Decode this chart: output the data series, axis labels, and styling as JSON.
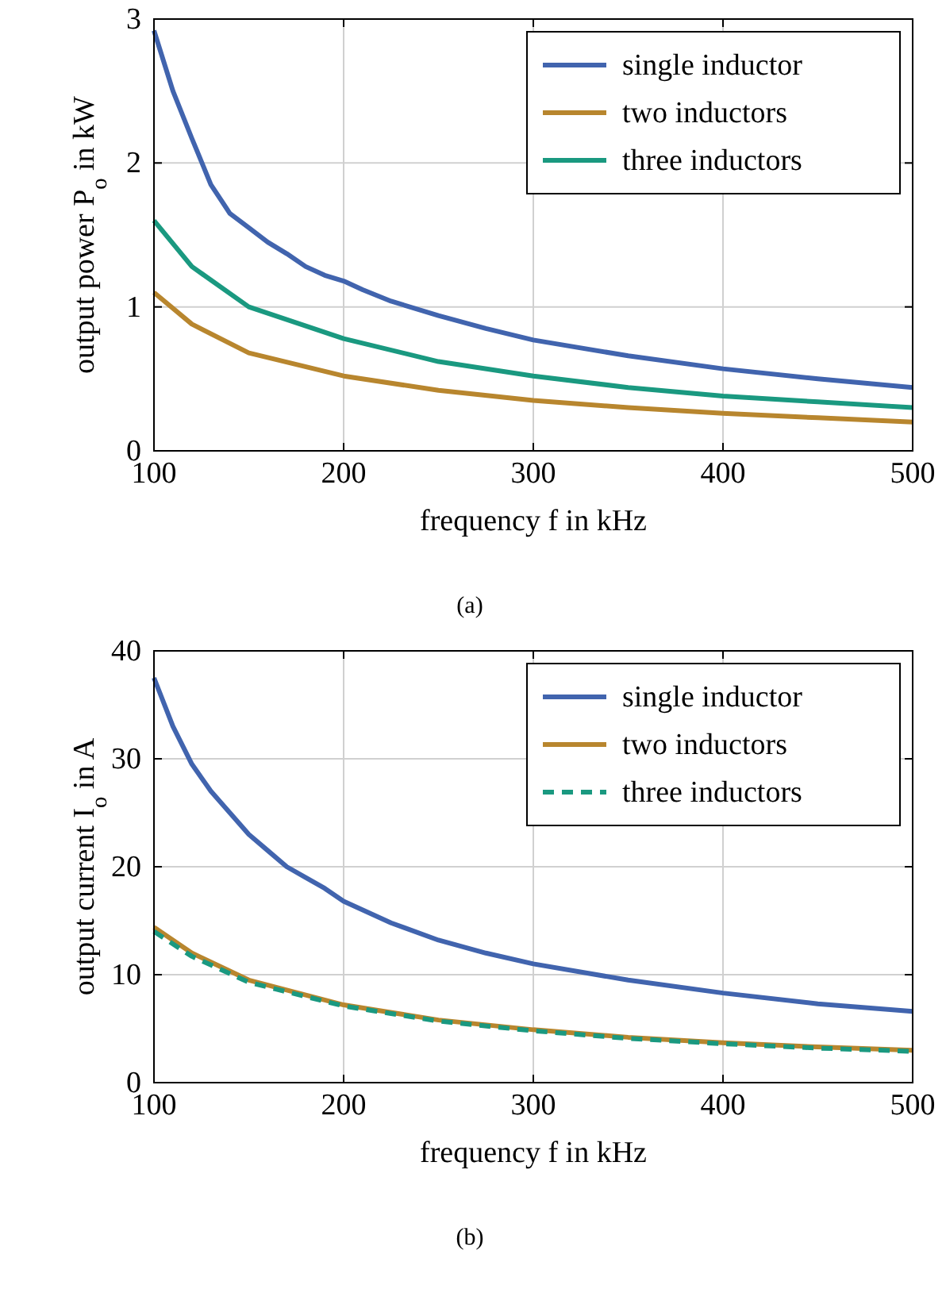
{
  "chart_data": [
    {
      "type": "line",
      "xlabel": "frequency f in kHz",
      "ylabel": "output power P$_{o}$ in kW",
      "annotations": [
        "(a)"
      ],
      "xlim": [
        100,
        500
      ],
      "ylim": [
        0,
        3
      ],
      "xticks": [
        100,
        200,
        300,
        400,
        500
      ],
      "yticks": [
        0,
        1,
        2,
        3
      ],
      "grid": true,
      "legend": "top right",
      "marker": "none",
      "series": [
        {
          "name": "single inductor",
          "color": "#4164ae",
          "x": [
            100,
            110,
            120,
            130,
            140,
            150,
            160,
            170,
            180,
            190,
            200,
            210,
            225,
            250,
            275,
            300,
            350,
            400,
            450,
            500
          ],
          "values": [
            2.92,
            2.5,
            2.17,
            1.85,
            1.65,
            1.55,
            1.45,
            1.37,
            1.28,
            1.22,
            1.18,
            1.12,
            1.04,
            0.94,
            0.85,
            0.77,
            0.66,
            0.57,
            0.5,
            0.44
          ]
        },
        {
          "name": "two inductors",
          "color": "#b8862e",
          "x": [
            100,
            120,
            150,
            200,
            250,
            300,
            350,
            400,
            450,
            500
          ],
          "values": [
            1.1,
            0.88,
            0.68,
            0.52,
            0.42,
            0.35,
            0.3,
            0.26,
            0.23,
            0.2
          ]
        },
        {
          "name": "three inductors",
          "color": "#1a9980",
          "x": [
            100,
            120,
            150,
            200,
            250,
            300,
            350,
            400,
            450,
            500
          ],
          "values": [
            1.6,
            1.28,
            1.0,
            0.78,
            0.62,
            0.52,
            0.44,
            0.38,
            0.34,
            0.3
          ]
        }
      ]
    },
    {
      "type": "line",
      "xlabel": "frequency f in kHz",
      "ylabel": "output current I$_{o}$ in A",
      "annotations": [
        "(b)"
      ],
      "xlim": [
        100,
        500
      ],
      "ylim": [
        0,
        40
      ],
      "xticks": [
        100,
        200,
        300,
        400,
        500
      ],
      "yticks": [
        0,
        10,
        20,
        30,
        40
      ],
      "grid": true,
      "legend": "top right",
      "marker": "none",
      "series": [
        {
          "name": "single inductor",
          "color": "#4164ae",
          "x": [
            100,
            110,
            120,
            130,
            140,
            150,
            160,
            170,
            180,
            190,
            200,
            225,
            250,
            275,
            300,
            350,
            400,
            450,
            500
          ],
          "values": [
            37.5,
            33,
            29.5,
            27,
            25,
            23,
            21.5,
            20,
            19,
            18,
            16.8,
            14.8,
            13.2,
            12,
            11,
            9.5,
            8.3,
            7.3,
            6.6
          ]
        },
        {
          "name": "two inductors",
          "color": "#b8862e",
          "x": [
            100,
            120,
            150,
            200,
            250,
            300,
            350,
            400,
            450,
            500
          ],
          "values": [
            14.4,
            12,
            9.5,
            7.2,
            5.8,
            4.9,
            4.2,
            3.7,
            3.3,
            3.0
          ]
        },
        {
          "name": "three inductors",
          "color": "#1a9980",
          "line_style": "dashed",
          "x": [
            100,
            120,
            150,
            200,
            250,
            300,
            350,
            400,
            450,
            500
          ],
          "values": [
            14.0,
            11.7,
            9.3,
            7.1,
            5.7,
            4.8,
            4.1,
            3.6,
            3.2,
            2.9
          ]
        }
      ]
    }
  ]
}
